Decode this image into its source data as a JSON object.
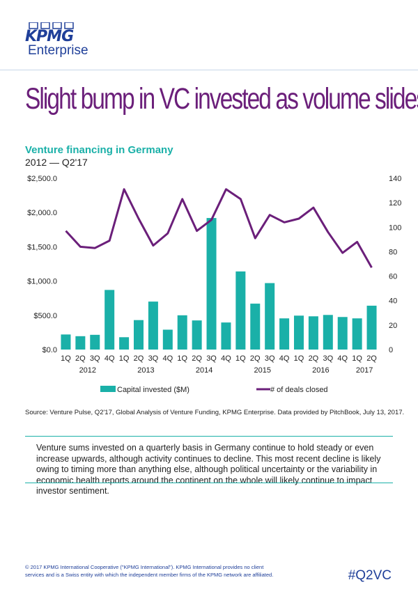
{
  "brand": {
    "logo_text": "KPMG",
    "logo_sub": "Enterprise",
    "color": "#1f3f99"
  },
  "headline": "Slight bump in VC invested as volume slides",
  "chart_title": "Venture financing in Germany",
  "chart_subtitle": "2012 — Q2'17",
  "chart_data": {
    "type": "bar+line",
    "categories": [
      "1Q",
      "2Q",
      "3Q",
      "4Q",
      "1Q",
      "2Q",
      "3Q",
      "4Q",
      "1Q",
      "2Q",
      "3Q",
      "4Q",
      "1Q",
      "2Q",
      "3Q",
      "4Q",
      "1Q",
      "2Q",
      "3Q",
      "4Q",
      "1Q",
      "2Q"
    ],
    "years": [
      {
        "label": "2012",
        "start": 0,
        "end": 3
      },
      {
        "label": "2013",
        "start": 4,
        "end": 7
      },
      {
        "label": "2014",
        "start": 8,
        "end": 11
      },
      {
        "label": "2015",
        "start": 12,
        "end": 15
      },
      {
        "label": "2016",
        "start": 16,
        "end": 19
      },
      {
        "label": "2017",
        "start": 20,
        "end": 21
      }
    ],
    "series": [
      {
        "name": "Capital invested ($M)",
        "type": "bar",
        "axis": "left",
        "color": "#1ab0a8",
        "values": [
          220,
          195,
          215,
          870,
          180,
          430,
          700,
          290,
          500,
          425,
          1920,
          395,
          1140,
          670,
          970,
          455,
          495,
          485,
          505,
          475,
          455,
          640
        ]
      },
      {
        "name": "# of deals closed",
        "type": "line",
        "axis": "right",
        "color": "#6b1f7a",
        "values": [
          97,
          84,
          83,
          89,
          131,
          107,
          85,
          95,
          123,
          97,
          106,
          131,
          123,
          91,
          110,
          104,
          107,
          116,
          96,
          79,
          88,
          67
        ]
      }
    ],
    "left_axis": {
      "ticks": [
        "$0.0",
        "$500.0",
        "$1,000.0",
        "$1,500.0",
        "$2,000.0",
        "$2,500.0"
      ],
      "range": [
        0,
        2500
      ]
    },
    "right_axis": {
      "ticks": [
        "0",
        "20",
        "40",
        "60",
        "80",
        "100",
        "120",
        "140"
      ],
      "range": [
        0,
        140
      ]
    },
    "legend": [
      "Capital invested ($M)",
      "# of deals closed"
    ]
  },
  "source": "Source: Venture Pulse, Q2'17, Global Analysis of Venture Funding, KPMG Enterprise. Data provided by PitchBook, July 13, 2017.",
  "body_text": "Venture sums invested on a quarterly basis in Germany continue to hold steady or even increase upwards, although activity continues to decline. This most recent decline is likely owing to timing more than anything else, although political uncertainty or the variability in economic health reports around the continent on the whole will likely continue to impact investor sentiment.",
  "footer": {
    "copyright": "© 2017 KPMG International Cooperative (\"KPMG International\"). KPMG International provides no client services and is a Swiss entity with which the independent member firms of the KPMG network are affiliated.",
    "hashtag": "#Q2VC"
  }
}
